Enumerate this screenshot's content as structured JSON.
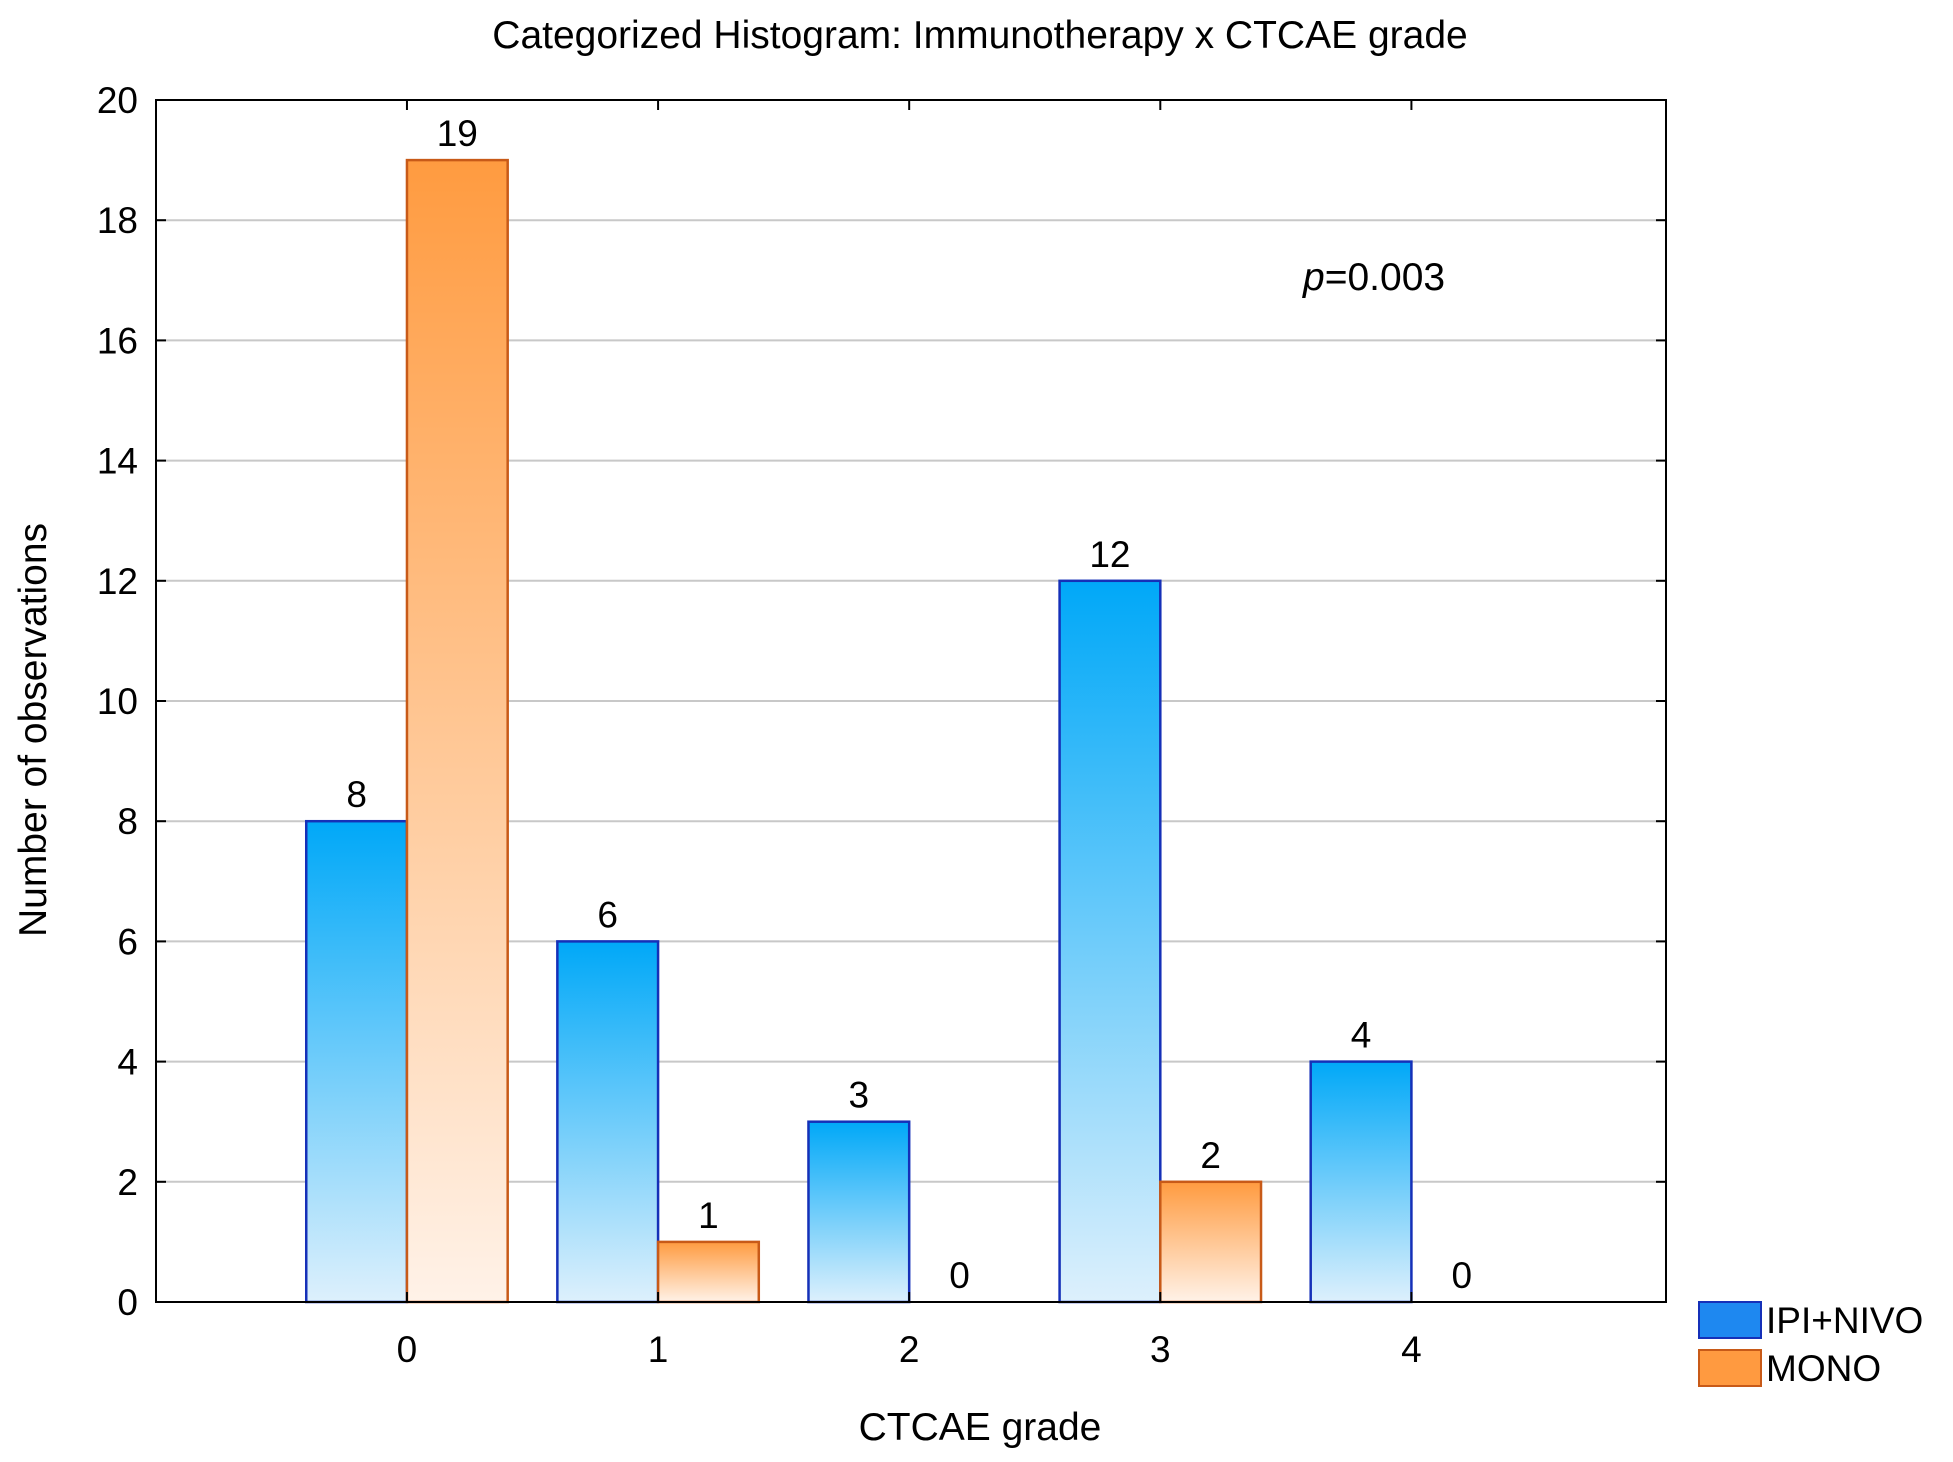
{
  "chart_data": {
    "type": "bar",
    "title": "Categorized Histogram: Immunotherapy x CTCAE grade",
    "xlabel": "CTCAE grade",
    "ylabel": "Number of observations",
    "categories": [
      "0",
      "1",
      "2",
      "3",
      "4"
    ],
    "series": [
      {
        "name": "IPI+NIVO",
        "values": [
          8,
          6,
          3,
          12,
          4
        ],
        "color": "#1E88F0",
        "gradient_top": "#00A8F8",
        "gradient_bottom": "#DDF0FC",
        "stroke": "#1530B8"
      },
      {
        "name": "MONO",
        "values": [
          19,
          1,
          0,
          2,
          0
        ],
        "color": "#FF9A40",
        "gradient_top": "#FF9B40",
        "gradient_bottom": "#FFF2E8",
        "stroke": "#C85A18"
      }
    ],
    "ylim": [
      0,
      20
    ],
    "yticks": [
      0,
      2,
      4,
      6,
      8,
      10,
      12,
      14,
      16,
      18,
      20
    ],
    "grid": true,
    "legend_position": "bottom-right",
    "annotation": {
      "italic": "p",
      "text": "=0.003"
    }
  }
}
